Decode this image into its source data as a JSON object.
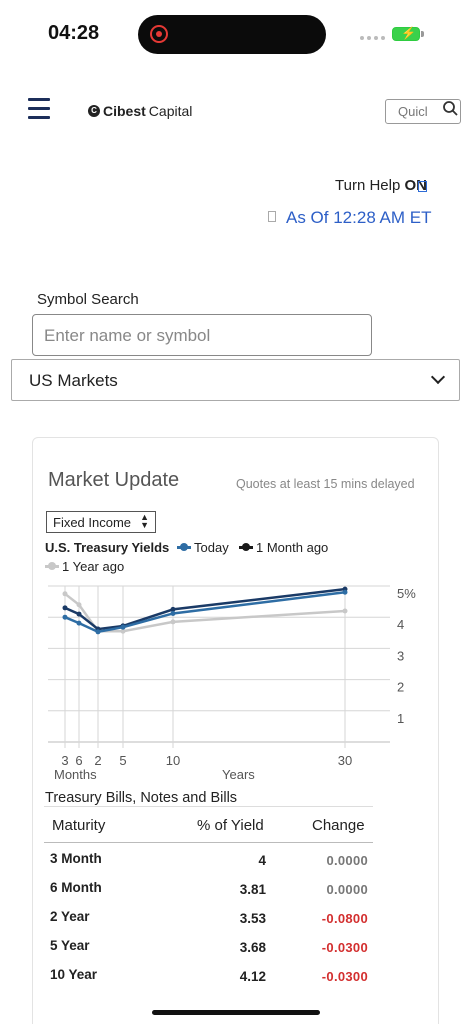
{
  "status": {
    "time": "04:28"
  },
  "header": {
    "logo_text_bold": "Cibest",
    "logo_text": "Capital",
    "search_placeholder": "Quicl"
  },
  "help": {
    "label": "Turn Help",
    "state": "ON"
  },
  "as_of": "As Of 12:28 AM ET",
  "symbol_search": {
    "label": "Symbol Search",
    "placeholder": "Enter name or symbol"
  },
  "market_select": {
    "value": "US Markets"
  },
  "market_update": {
    "title": "Market Update",
    "delay_note": "Quotes at least 15 mins delayed",
    "category": "Fixed Income",
    "chart_title": "U.S. Treasury Yields",
    "legend": [
      "Today",
      "1 Month ago",
      "1 Year ago"
    ]
  },
  "chart_data": {
    "type": "line",
    "title": "U.S. Treasury Yields",
    "x_tick_labels": [
      "3",
      "6",
      "2",
      "5",
      "10",
      "30"
    ],
    "x_group_labels": [
      "Months",
      "Years"
    ],
    "y_tick_labels": [
      "5%",
      "4",
      "3",
      "2",
      "1"
    ],
    "ylim": [
      0,
      5
    ],
    "grid": true,
    "legend_position": "top",
    "series": [
      {
        "name": "Today",
        "color": "#2e6da4",
        "x": [
          "3 Month",
          "6 Month",
          "2 Year",
          "5 Year",
          "10 Year",
          "30 Year"
        ],
        "values": [
          4.0,
          3.81,
          3.53,
          3.68,
          4.12,
          4.8
        ]
      },
      {
        "name": "1 Month ago",
        "color": "#1a3a66",
        "x": [
          "3 Month",
          "6 Month",
          "2 Year",
          "5 Year",
          "10 Year",
          "30 Year"
        ],
        "values": [
          4.3,
          4.1,
          3.62,
          3.72,
          4.25,
          4.9
        ]
      },
      {
        "name": "1 Year ago",
        "color": "#c8c8c8",
        "x": [
          "3 Month",
          "6 Month",
          "2 Year",
          "5 Year",
          "10 Year",
          "30 Year"
        ],
        "values": [
          4.75,
          4.4,
          3.55,
          3.55,
          3.85,
          4.2
        ]
      }
    ]
  },
  "table": {
    "caption": "Treasury Bills, Notes and Bills",
    "headers": [
      "Maturity",
      "% of Yield",
      "Change"
    ],
    "rows": [
      {
        "maturity": "3 Month",
        "yield": "4",
        "change": "0.0000",
        "neg": false
      },
      {
        "maturity": "6 Month",
        "yield": "3.81",
        "change": "0.0000",
        "neg": false
      },
      {
        "maturity": "2 Year",
        "yield": "3.53",
        "change": "-0.0800",
        "neg": true
      },
      {
        "maturity": "5 Year",
        "yield": "3.68",
        "change": "-0.0300",
        "neg": true
      },
      {
        "maturity": "10 Year",
        "yield": "4.12",
        "change": "-0.0300",
        "neg": true
      }
    ]
  },
  "colors": {
    "accent": "#2d5fc7",
    "negative": "#d32f2f",
    "neutral": "#777777",
    "brand_dark": "#1c2e5a"
  }
}
